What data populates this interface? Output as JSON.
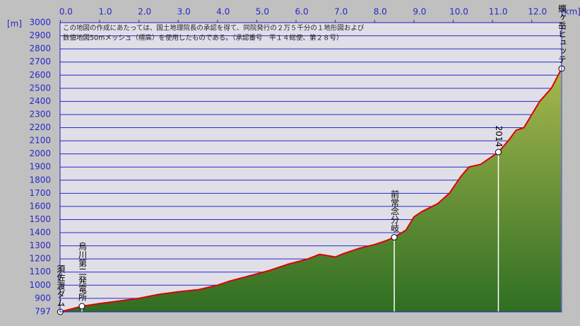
{
  "chart_data": {
    "type": "area",
    "xlabel": "[km]",
    "ylabel": "[m]",
    "notes": [
      "この地図の作成にあたっては、国土地理院長の承認を得て、同院発行の２万５千分の１地形図および",
      "数値地図50mメッシュ（標高）を使用したものである。（承認番号　平１４総使、第２８号）"
    ],
    "fill_color": "#6a9a38",
    "line_color": "#e00000",
    "grid": true,
    "xlim": [
      0,
      12.76
    ],
    "ylim": [
      797,
      3000
    ],
    "xticks": [
      {
        "value": 0,
        "label": "0.0"
      },
      {
        "value": 1,
        "label": "1.0"
      },
      {
        "value": 2,
        "label": "2.0"
      },
      {
        "value": 3,
        "label": "3.0"
      },
      {
        "value": 4,
        "label": "4.0"
      },
      {
        "value": 5,
        "label": "5.0"
      },
      {
        "value": 6,
        "label": "6.0"
      },
      {
        "value": 7,
        "label": "7.0"
      },
      {
        "value": 8,
        "label": "8.0"
      },
      {
        "value": 9,
        "label": "9.0"
      },
      {
        "value": 10,
        "label": "10.0"
      },
      {
        "value": 11,
        "label": "11.0"
      },
      {
        "value": 12,
        "label": "12.0"
      }
    ],
    "yticks": [
      797,
      900,
      1000,
      1100,
      1200,
      1300,
      1400,
      1500,
      1600,
      1700,
      1800,
      1900,
      2000,
      2100,
      2200,
      2300,
      2400,
      2500,
      2600,
      2700,
      2800,
      2900,
      3000
    ],
    "x": [
      0,
      0.3,
      0.55,
      1,
      1.5,
      2,
      2.5,
      3,
      3.5,
      4,
      4.3,
      4.8,
      5.3,
      5.8,
      6.3,
      6.6,
      7,
      7.2,
      7.6,
      8,
      8.3,
      8.5,
      8.8,
      9.0,
      9.2,
      9.6,
      9.9,
      10.2,
      10.4,
      10.7,
      11.15,
      11.4,
      11.6,
      11.8,
      12.0,
      12.2,
      12.5,
      12.76
    ],
    "values": [
      797,
      820,
      840,
      860,
      880,
      900,
      930,
      950,
      965,
      1000,
      1030,
      1070,
      1110,
      1160,
      1200,
      1235,
      1215,
      1240,
      1280,
      1310,
      1340,
      1365,
      1420,
      1520,
      1560,
      1620,
      1700,
      1830,
      1900,
      1920,
      2014,
      2100,
      2180,
      2200,
      2300,
      2400,
      2500,
      2650
    ],
    "waypoints": [
      {
        "name": "須佐渡ダム",
        "x": 0,
        "value": 797
      },
      {
        "name": "烏川第二発電所",
        "x": 0.55,
        "value": 840
      },
      {
        "name": "前常念分岐",
        "x": 8.5,
        "value": 1365
      },
      {
        "name": "2014",
        "x": 11.15,
        "value": 2014
      },
      {
        "name": "蝶ヶ岳ヒュッテ",
        "x": 12.76,
        "value": 2650
      }
    ]
  }
}
